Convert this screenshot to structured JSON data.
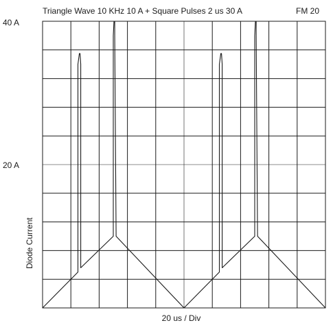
{
  "title": "Triangle Wave 10 KHz 10 A + Square Pulses 2 us 30 A",
  "figure_label": "FM 20",
  "y_axis_label": "Diode Current",
  "x_axis_label": "20 us / Div",
  "y_tick_labels": [
    "40 A",
    "20 A"
  ],
  "colors": {
    "trace": "#1a1a1a",
    "grid": "#1a1a1a",
    "background": "#ffffff"
  },
  "chart_data": {
    "type": "line",
    "title": "Triangle Wave 10 KHz 10 A + Square Pulses 2 us 30 A",
    "xlabel": "20 us / Div",
    "ylabel": "Diode Current",
    "x_unit": "us",
    "y_unit": "A",
    "xlim": [
      0,
      200
    ],
    "ylim": [
      0,
      40
    ],
    "x_divisions": 10,
    "y_divisions": 10,
    "grid": true,
    "series": [
      {
        "x": [
          0,
          25,
          25,
          26,
          26.5,
          27,
          27,
          50,
          50,
          50.5,
          51,
          51,
          52,
          52,
          100,
          125,
          125,
          126,
          126.5,
          127,
          127,
          150,
          150,
          150.5,
          151,
          151,
          152,
          152,
          200
        ],
        "y": [
          0,
          5,
          34,
          35.5,
          35.5,
          34,
          5.6,
          10,
          38,
          40,
          40,
          38,
          10.2,
          10,
          0,
          5,
          34,
          35.5,
          35.5,
          34,
          5.6,
          10,
          38,
          40,
          40,
          38,
          10.2,
          10,
          0
        ]
      }
    ]
  }
}
